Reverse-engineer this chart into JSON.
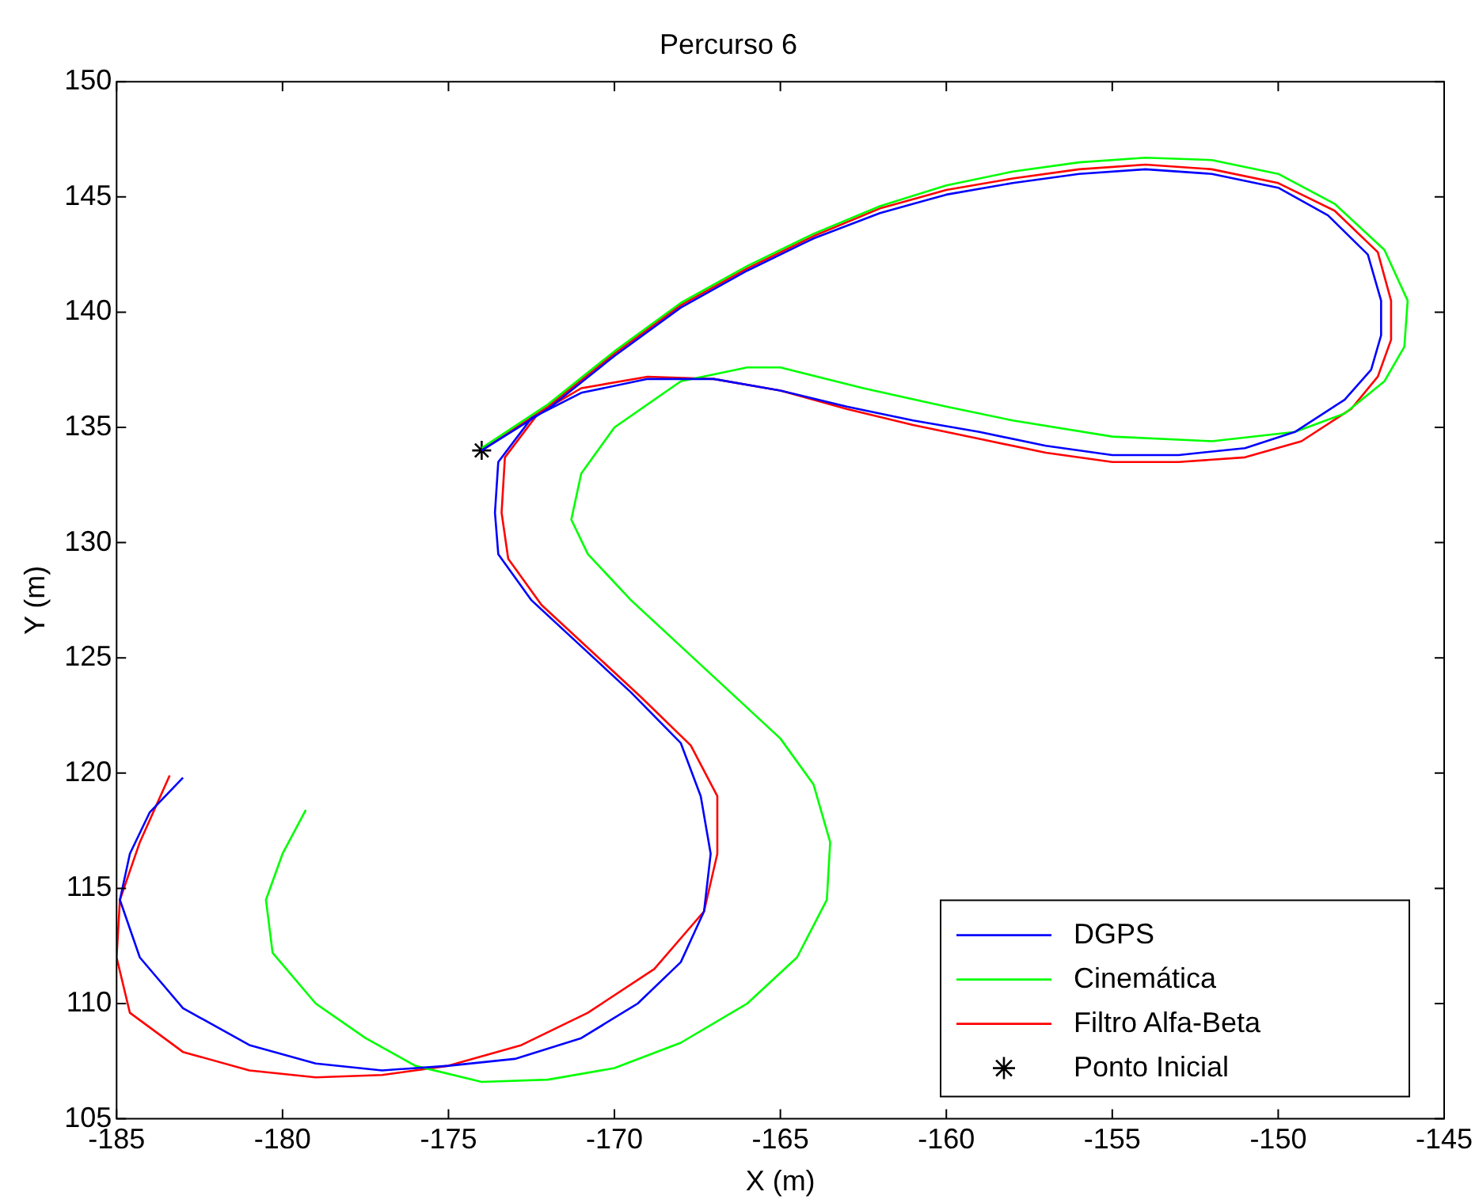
{
  "chart_data": {
    "type": "line",
    "title": "Percurso 6",
    "xlabel": "X (m)",
    "ylabel": "Y (m)",
    "xlim": [
      -185,
      -145
    ],
    "ylim": [
      105,
      150
    ],
    "xticks": [
      -185,
      -180,
      -175,
      -170,
      -165,
      -160,
      -155,
      -150,
      -145
    ],
    "yticks": [
      105,
      110,
      115,
      120,
      125,
      130,
      135,
      140,
      145,
      150
    ],
    "grid": false,
    "legend": "bottom right",
    "line_style": "solid",
    "series": [
      {
        "name": "DGPS",
        "color": "#0000ff",
        "marker": "none",
        "x": [
          -174,
          -172,
          -170,
          -168,
          -166,
          -164,
          -162,
          -160,
          -158,
          -156,
          -154,
          -152,
          -150,
          -148.5,
          -147.3,
          -146.9,
          -146.9,
          -147.2,
          -148,
          -149.5,
          -151,
          -153,
          -155,
          -157,
          -159,
          -161,
          -163,
          -165,
          -167,
          -169,
          -171,
          -172.5,
          -173.5,
          -173.6,
          -173.5,
          -172.5,
          -171,
          -169.5,
          -168,
          -167.4,
          -167.1,
          -167.3,
          -168,
          -169.3,
          -171,
          -173,
          -175,
          -177,
          -179,
          -181,
          -183,
          -184.3,
          -184.9,
          -184.6,
          -184,
          -183
        ],
        "values": [
          134,
          135.8,
          138.1,
          140.2,
          141.8,
          143.2,
          144.3,
          145.1,
          145.6,
          146,
          146.2,
          146,
          145.4,
          144.2,
          142.5,
          140.5,
          139,
          137.5,
          136.2,
          134.8,
          134.1,
          133.8,
          133.8,
          134.2,
          134.8,
          135.3,
          135.9,
          136.6,
          137.1,
          137.1,
          136.5,
          135.4,
          133.5,
          131.3,
          129.5,
          127.5,
          125.5,
          123.5,
          121.3,
          119,
          116.5,
          114,
          111.8,
          110,
          108.5,
          107.6,
          107.3,
          107.1,
          107.4,
          108.2,
          109.8,
          112,
          114.5,
          116.5,
          118.3,
          119.8
        ]
      },
      {
        "name": "Cinemática",
        "color": "#00ff00",
        "marker": "none",
        "x": [
          -174,
          -172,
          -170,
          -168,
          -166,
          -164,
          -162,
          -160,
          -158,
          -156,
          -154,
          -152,
          -150,
          -148.3,
          -146.8,
          -146.1,
          -146.2,
          -146.8,
          -148,
          -149.5,
          -152,
          -155,
          -158,
          -160,
          -162.5,
          -165,
          -166,
          -168,
          -170,
          -171,
          -171.3,
          -170.8,
          -169.5,
          -168,
          -166.5,
          -165,
          -164,
          -163.5,
          -163.6,
          -164.5,
          -166,
          -168,
          -170,
          -172,
          -174,
          -176,
          -177.5,
          -179,
          -180.3,
          -180.5,
          -180,
          -179.3
        ],
        "values": [
          134.1,
          136,
          138.3,
          140.4,
          142,
          143.4,
          144.6,
          145.5,
          146.1,
          146.5,
          146.7,
          146.6,
          146,
          144.7,
          142.7,
          140.5,
          138.5,
          137,
          135.6,
          134.8,
          134.4,
          134.6,
          135.3,
          135.9,
          136.7,
          137.6,
          137.6,
          137,
          135,
          133,
          131,
          129.5,
          127.5,
          125.5,
          123.5,
          121.5,
          119.5,
          117,
          114.5,
          112,
          110,
          108.3,
          107.2,
          106.7,
          106.6,
          107.3,
          108.5,
          110,
          112.2,
          114.5,
          116.5,
          118.4
        ]
      },
      {
        "name": "Filtro Alfa-Beta",
        "color": "#ff0000",
        "marker": "none",
        "x": [
          -174,
          -172,
          -170,
          -168,
          -166,
          -164,
          -162,
          -160,
          -158,
          -156,
          -154,
          -152,
          -150,
          -148.3,
          -147,
          -146.6,
          -146.6,
          -147,
          -147.8,
          -149.3,
          -151,
          -153,
          -155,
          -157,
          -159,
          -161,
          -163,
          -165,
          -167,
          -169,
          -171,
          -172.3,
          -173.3,
          -173.4,
          -173.2,
          -172.2,
          -170.7,
          -169.2,
          -167.7,
          -166.9,
          -166.9,
          -167.3,
          -168.8,
          -170.8,
          -172.8,
          -175,
          -177,
          -179,
          -181,
          -183,
          -184.6,
          -185,
          -184.9,
          -184.3,
          -183.4
        ],
        "values": [
          134,
          135.9,
          138.2,
          140.3,
          141.9,
          143.3,
          144.5,
          145.3,
          145.8,
          146.2,
          146.4,
          146.2,
          145.6,
          144.4,
          142.6,
          140.5,
          138.8,
          137.2,
          135.8,
          134.4,
          133.7,
          133.5,
          133.5,
          133.9,
          134.5,
          135.1,
          135.8,
          136.6,
          137.1,
          137.2,
          136.7,
          135.6,
          133.7,
          131.3,
          129.3,
          127.3,
          125.3,
          123.3,
          121.2,
          119,
          116.5,
          114,
          111.5,
          109.6,
          108.2,
          107.3,
          106.9,
          106.8,
          107.1,
          107.9,
          109.6,
          112,
          114.5,
          117,
          119.9
        ]
      },
      {
        "name": "Ponto Inicial",
        "color": "#000000",
        "type": "scatter",
        "marker": "cross",
        "x": [
          -174
        ],
        "values": [
          134
        ]
      }
    ]
  }
}
